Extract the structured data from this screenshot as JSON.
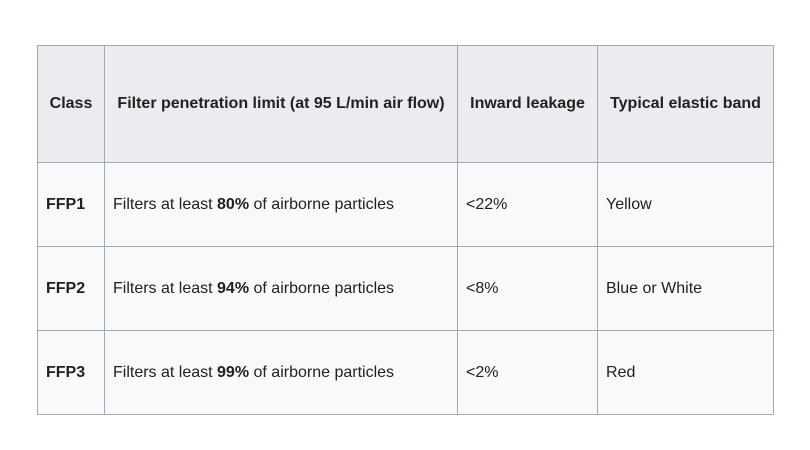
{
  "table": {
    "headers": {
      "class": "Class",
      "filter_limit": "Filter penetration limit (at 95 L/min air flow)",
      "inward_leakage": "Inward leakage",
      "elastic_band": "Typical elastic band"
    },
    "rows": [
      {
        "class": "FFP1",
        "filter_prefix": "Filters at least ",
        "filter_percent": "80%",
        "filter_suffix": " of airborne particles",
        "inward_leakage": "<22%",
        "elastic_band": "Yellow"
      },
      {
        "class": "FFP2",
        "filter_prefix": "Filters at least ",
        "filter_percent": "94%",
        "filter_suffix": " of airborne particles",
        "inward_leakage": "<8%",
        "elastic_band": "Blue or White"
      },
      {
        "class": "FFP3",
        "filter_prefix": "Filters at least ",
        "filter_percent": "99%",
        "filter_suffix": " of airborne particles",
        "inward_leakage": "<2%",
        "elastic_band": "Red"
      }
    ]
  },
  "colors": {
    "header_background": "#eaecf0",
    "cell_background": "#f8f9fa",
    "border": "#a2a9b1",
    "text": "#202122"
  }
}
